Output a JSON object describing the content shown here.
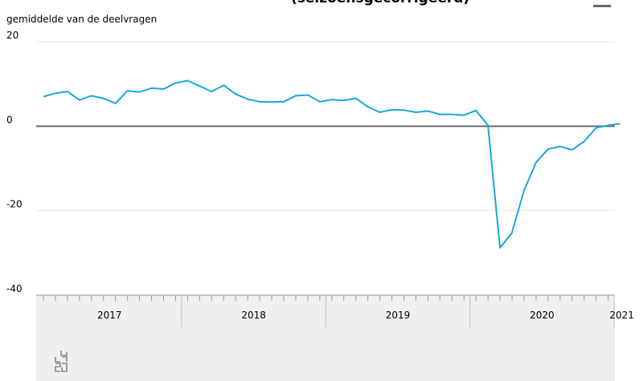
{
  "chart_data": {
    "type": "line",
    "title_partial": "(seizoensgecorrigeerd)",
    "ylabel": "gemiddelde van de deelvragen",
    "ylim": [
      -40,
      20
    ],
    "yticks": [
      20,
      0,
      -20,
      -40
    ],
    "x_axis": {
      "years": [
        "2017",
        "2018",
        "2019",
        "2020",
        "2021"
      ],
      "months_per_year": 12
    },
    "series": [
      {
        "color": "#1aa8d6",
        "x": [
          "2017-01",
          "2017-02",
          "2017-03",
          "2017-04",
          "2017-05",
          "2017-06",
          "2017-07",
          "2017-08",
          "2017-09",
          "2017-10",
          "2017-11",
          "2017-12",
          "2018-01",
          "2018-02",
          "2018-03",
          "2018-04",
          "2018-05",
          "2018-06",
          "2018-07",
          "2018-08",
          "2018-09",
          "2018-10",
          "2018-11",
          "2018-12",
          "2019-01",
          "2019-02",
          "2019-03",
          "2019-04",
          "2019-05",
          "2019-06",
          "2019-07",
          "2019-08",
          "2019-09",
          "2019-10",
          "2019-11",
          "2019-12",
          "2020-01",
          "2020-02",
          "2020-03",
          "2020-04",
          "2020-05",
          "2020-06",
          "2020-07",
          "2020-08",
          "2020-09",
          "2020-10",
          "2020-11",
          "2020-12",
          "2021-01"
        ],
        "values": [
          7,
          7.8,
          8.2,
          6.2,
          7.2,
          6.6,
          5.4,
          8.4,
          8.1,
          9,
          8.8,
          10.2,
          10.8,
          9.5,
          8.2,
          9.7,
          7.6,
          6.4,
          5.8,
          5.7,
          5.8,
          7.2,
          7.4,
          5.8,
          6.3,
          6.1,
          6.6,
          4.6,
          3.3,
          3.9,
          3.8,
          3.3,
          3.6,
          2.8,
          2.8,
          2.6,
          3.7,
          0.2,
          -28.8,
          -25.2,
          -15.2,
          -8.6,
          -5.4,
          -4.8,
          -5.6,
          -3.6,
          -0.4,
          0.2,
          0.6
        ]
      }
    ],
    "zero_line": true,
    "grid": true
  },
  "logo_name": "cbs-logo"
}
